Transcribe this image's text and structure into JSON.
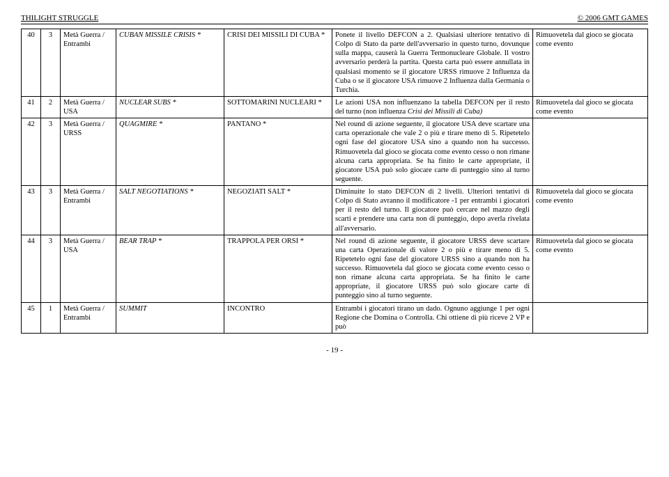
{
  "header": {
    "left": "THILIGHT STRUGGLE",
    "right": "© 2006 GMT GAMES"
  },
  "footer": "- 19 -",
  "rows": [
    {
      "num": "40",
      "ops": "3",
      "era": "Metà Guerra / Entrambi",
      "title_en": "CUBAN MISSILE CRISIS *",
      "title_it": "CRISI DEI MISSILI DI CUBA *",
      "desc": "Ponete il livello DEFCON a 2. Qualsiasi ulteriore tentativo di Colpo di Stato da parte dell'avversario in questo turno, dovunque sulla mappa, causerà la Guerra Termonucleare Globale. Il vostro avversario perderà la partita. Questa carta può essere annullata in qualsiasi momento se il giocatore URSS rimuove 2 Influenza da Cuba o se il giocatore USA rimuove 2 Influenza dalla Germania o Turchia.",
      "note": "Rimuovetela dal gioco se giocata come evento"
    },
    {
      "num": "41",
      "ops": "2",
      "era": "Metà Guerra / USA",
      "title_en": "NUCLEAR SUBS *",
      "title_it": "SOTTOMARINI NUCLEARI *",
      "desc": "Le azioni USA non influenzano la tabella DEFCON per il resto del turno (non influenza Crisi dei Missili di Cuba)",
      "desc_italic_tail": "Crisi dei Missili di Cuba)",
      "note": "Rimuovetela dal gioco se giocata come evento"
    },
    {
      "num": "42",
      "ops": "3",
      "era": "Metà Guerra / URSS",
      "title_en": "QUAGMIRE *",
      "title_it": "PANTANO *",
      "desc": "Nel round di azione seguente, il giocatore USA deve scartare una carta operazionale che vale 2 o più e tirare meno di 5. Ripetetelo ogni fase del giocatore USA sino a quando non ha successo. Rimuovetela dal gioco se giocata come evento cesso o non rimane alcuna carta appropriata. Se ha finito le carte appropriate, il giocatore USA può solo giocare carte di punteggio sino al turno seguente.",
      "note": ""
    },
    {
      "num": "43",
      "ops": "3",
      "era": "Metà Guerra / Entrambi",
      "title_en": "SALT NEGOTIATIONS *",
      "title_it": "NEGOZIATI SALT *",
      "desc": "Diminuite lo stato DEFCON di 2 livelli. Ulteriori tentativi di Colpo di Stato avranno il modificatore -1 per entrambi i giocatori per il resto del turno. Il giocatore può cercare nel mazzo degli scarti e prendere una carta non di punteggio, dopo averla rivelata all'avversario.",
      "note": "Rimuovetela dal gioco se giocata come evento"
    },
    {
      "num": "44",
      "ops": "3",
      "era": "Metà Guerra / USA",
      "title_en": "BEAR TRAP *",
      "title_it": "TRAPPOLA PER ORSI *",
      "desc": "Nel round di azione seguente, il giocatore URSS deve scartare una carta Operazionale di valore 2 o più e tirare meno di 5. Ripetetelo ogni fase del giocatore URSS sino a quando non ha successo. Rimuovetela dal gioco se giocata come evento cesso o non rimane alcuna carta appropriata. Se ha finito le carte appropriate, il giocatore URSS può solo giocare carte di punteggio sino al turno seguente.",
      "note": "Rimuovetela dal gioco se giocata come evento"
    },
    {
      "num": "45",
      "ops": "1",
      "era": "Metà Guerra / Entrambi",
      "title_en": "SUMMIT",
      "title_it": "INCONTRO",
      "desc": "Entrambi i giocatori tirano un dado. Ognuno aggiunge 1 per ogni Regione che Domina o Controlla. Chi ottiene di più riceve 2 VP e può",
      "note": ""
    }
  ]
}
